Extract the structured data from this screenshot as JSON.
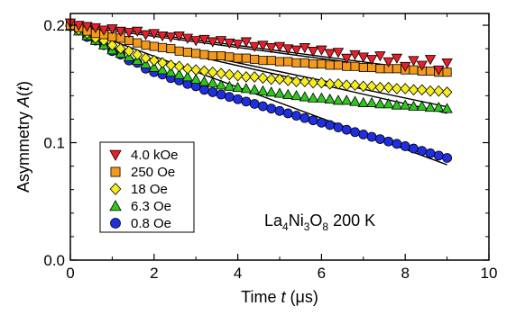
{
  "chart_data": {
    "type": "scatter",
    "xlabel_prefix": "Time ",
    "xlabel_var": "t",
    "xlabel_unit": " (μs)",
    "ylabel_prefix": "Asymmetry ",
    "ylabel_var": "A",
    "ylabel_open": "(",
    "ylabel_arg": "t",
    "ylabel_close": ")",
    "xlim": [
      0,
      10
    ],
    "ylim": [
      0.0,
      0.21
    ],
    "x_ticks": [
      0,
      2,
      4,
      6,
      8,
      10
    ],
    "x_tick_labels": [
      "0",
      "2",
      "4",
      "6",
      "8",
      "10"
    ],
    "y_ticks": [
      0.0,
      0.1,
      0.2
    ],
    "y_tick_labels": [
      "0.0",
      "0.1",
      "0.2"
    ],
    "grid": false,
    "legend_position": "lower-left",
    "annotation": {
      "parts": [
        {
          "text": "La",
          "sub": false
        },
        {
          "text": "4",
          "sub": true
        },
        {
          "text": "Ni",
          "sub": false
        },
        {
          "text": "3",
          "sub": true
        },
        {
          "text": "O",
          "sub": false
        },
        {
          "text": "8",
          "sub": true
        },
        {
          "text": "  200 K",
          "sub": false
        }
      ]
    },
    "series": [
      {
        "name": "4.0 kOe",
        "marker": "triangle-down",
        "color": "#e8202a",
        "fit": [
          0.2015,
          0.00468
        ],
        "x": [
          0.0,
          0.2,
          0.4,
          0.6,
          0.8,
          1.0,
          1.2,
          1.4,
          1.6,
          1.8,
          2.0,
          2.2,
          2.4,
          2.6,
          2.8,
          3.0,
          3.2,
          3.4,
          3.6,
          3.8,
          4.0,
          4.2,
          4.4,
          4.6,
          4.8,
          5.0,
          5.2,
          5.4,
          5.6,
          5.8,
          6.0,
          6.2,
          6.4,
          6.6,
          6.8,
          7.0,
          7.2,
          7.4,
          7.6,
          7.8,
          8.0,
          8.2,
          8.4,
          8.6,
          8.8,
          9.0
        ],
        "y": [
          0.202,
          0.2,
          0.199,
          0.198,
          0.196,
          0.197,
          0.195,
          0.194,
          0.195,
          0.192,
          0.193,
          0.191,
          0.19,
          0.191,
          0.189,
          0.187,
          0.188,
          0.186,
          0.187,
          0.185,
          0.184,
          0.186,
          0.182,
          0.183,
          0.181,
          0.182,
          0.18,
          0.179,
          0.181,
          0.178,
          0.179,
          0.176,
          0.177,
          0.172,
          0.175,
          0.173,
          0.171,
          0.174,
          0.169,
          0.172,
          0.165,
          0.17,
          0.166,
          0.171,
          0.162,
          0.168
        ]
      },
      {
        "name": "250 Oe",
        "marker": "square",
        "color": "#f39a1d",
        "fit": [
          0.2,
          0.00473
        ],
        "x": [
          0.0,
          0.2,
          0.4,
          0.6,
          0.8,
          1.0,
          1.2,
          1.4,
          1.6,
          1.8,
          2.0,
          2.2,
          2.4,
          2.6,
          2.8,
          3.0,
          3.2,
          3.4,
          3.6,
          3.8,
          4.0,
          4.2,
          4.4,
          4.6,
          4.8,
          5.0,
          5.2,
          5.4,
          5.6,
          5.8,
          6.0,
          6.2,
          6.4,
          6.6,
          6.8,
          7.0,
          7.2,
          7.4,
          7.6,
          7.8,
          8.0,
          8.2,
          8.4,
          8.6,
          8.8,
          9.0
        ],
        "y": [
          0.2,
          0.198,
          0.195,
          0.193,
          0.192,
          0.19,
          0.189,
          0.187,
          0.185,
          0.183,
          0.182,
          0.181,
          0.18,
          0.178,
          0.177,
          0.176,
          0.175,
          0.174,
          0.174,
          0.173,
          0.172,
          0.172,
          0.171,
          0.17,
          0.17,
          0.169,
          0.169,
          0.168,
          0.168,
          0.167,
          0.167,
          0.166,
          0.166,
          0.165,
          0.165,
          0.164,
          0.164,
          0.163,
          0.163,
          0.163,
          0.162,
          0.162,
          0.161,
          0.161,
          0.16,
          0.16
        ]
      },
      {
        "name": "18 Oe",
        "marker": "diamond",
        "color": "#f5ee1c",
        "fit": [
          0.198,
          0.0075
        ],
        "x": [
          0.0,
          0.2,
          0.4,
          0.6,
          0.8,
          1.0,
          1.2,
          1.4,
          1.6,
          1.8,
          2.0,
          2.2,
          2.4,
          2.6,
          2.8,
          3.0,
          3.2,
          3.4,
          3.6,
          3.8,
          4.0,
          4.2,
          4.4,
          4.6,
          4.8,
          5.0,
          5.2,
          5.4,
          5.6,
          5.8,
          6.0,
          6.2,
          6.4,
          6.6,
          6.8,
          7.0,
          7.2,
          7.4,
          7.6,
          7.8,
          8.0,
          8.2,
          8.4,
          8.6,
          8.8,
          9.0
        ],
        "y": [
          0.199,
          0.196,
          0.193,
          0.189,
          0.187,
          0.183,
          0.18,
          0.178,
          0.175,
          0.172,
          0.17,
          0.168,
          0.166,
          0.165,
          0.163,
          0.162,
          0.161,
          0.16,
          0.159,
          0.158,
          0.157,
          0.156,
          0.156,
          0.155,
          0.154,
          0.154,
          0.153,
          0.152,
          0.152,
          0.151,
          0.151,
          0.15,
          0.15,
          0.149,
          0.149,
          0.148,
          0.148,
          0.147,
          0.147,
          0.146,
          0.146,
          0.145,
          0.145,
          0.144,
          0.144,
          0.143
        ]
      },
      {
        "name": "6.3 Oe",
        "marker": "triangle-up",
        "color": "#2fc61d",
        "fit": [
          0.198,
          0.0081
        ],
        "x": [
          0.0,
          0.2,
          0.4,
          0.6,
          0.8,
          1.0,
          1.2,
          1.4,
          1.6,
          1.8,
          2.0,
          2.2,
          2.4,
          2.6,
          2.8,
          3.0,
          3.2,
          3.4,
          3.6,
          3.8,
          4.0,
          4.2,
          4.4,
          4.6,
          4.8,
          5.0,
          5.2,
          5.4,
          5.6,
          5.8,
          6.0,
          6.2,
          6.4,
          6.6,
          6.8,
          7.0,
          7.2,
          7.4,
          7.6,
          7.8,
          8.0,
          8.2,
          8.4,
          8.6,
          8.8,
          9.0
        ],
        "y": [
          0.199,
          0.195,
          0.191,
          0.187,
          0.183,
          0.179,
          0.176,
          0.173,
          0.17,
          0.167,
          0.164,
          0.162,
          0.16,
          0.158,
          0.156,
          0.154,
          0.152,
          0.151,
          0.149,
          0.148,
          0.147,
          0.146,
          0.145,
          0.144,
          0.143,
          0.142,
          0.141,
          0.14,
          0.139,
          0.138,
          0.138,
          0.137,
          0.136,
          0.136,
          0.135,
          0.134,
          0.134,
          0.133,
          0.133,
          0.132,
          0.132,
          0.131,
          0.131,
          0.13,
          0.13,
          0.129
        ]
      },
      {
        "name": "0.8 Oe",
        "marker": "circle",
        "color": "#1f2fe0",
        "fit": [
          0.2,
          0.0132
        ],
        "x": [
          0.0,
          0.2,
          0.4,
          0.6,
          0.8,
          1.0,
          1.2,
          1.4,
          1.6,
          1.8,
          2.0,
          2.2,
          2.4,
          2.6,
          2.8,
          3.0,
          3.2,
          3.4,
          3.6,
          3.8,
          4.0,
          4.2,
          4.4,
          4.6,
          4.8,
          5.0,
          5.2,
          5.4,
          5.6,
          5.8,
          6.0,
          6.2,
          6.4,
          6.6,
          6.8,
          7.0,
          7.2,
          7.4,
          7.6,
          7.8,
          8.0,
          8.2,
          8.4,
          8.6,
          8.8,
          9.0
        ],
        "y": [
          0.2,
          0.196,
          0.19,
          0.187,
          0.183,
          0.178,
          0.175,
          0.17,
          0.168,
          0.163,
          0.16,
          0.158,
          0.155,
          0.153,
          0.15,
          0.148,
          0.145,
          0.143,
          0.141,
          0.139,
          0.137,
          0.135,
          0.133,
          0.131,
          0.129,
          0.127,
          0.125,
          0.123,
          0.121,
          0.119,
          0.117,
          0.115,
          0.113,
          0.111,
          0.109,
          0.107,
          0.105,
          0.103,
          0.101,
          0.099,
          0.097,
          0.095,
          0.093,
          0.091,
          0.089,
          0.087
        ]
      }
    ]
  }
}
